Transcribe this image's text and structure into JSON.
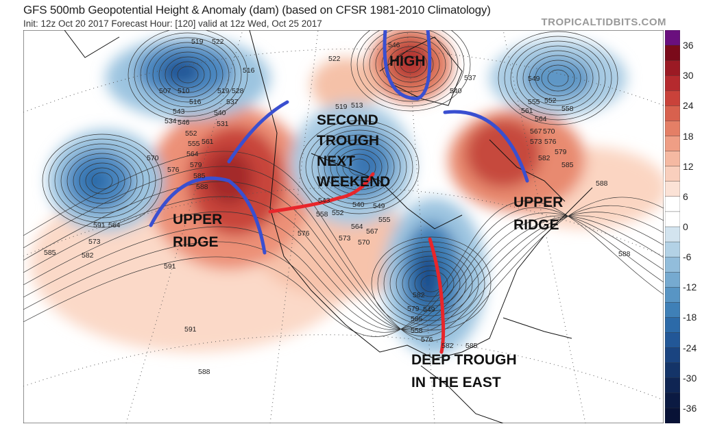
{
  "header": {
    "title": "GFS 500mb Geopotential Height & Anomaly (dam) (based on CFSR 1981-2010 Climatology)",
    "subtitle": "Init: 12z Oct 20 2017   Forecast Hour: [120]   valid at 12z Wed, Oct 25 2017",
    "brand": "TROPICALTIDBITS.COM"
  },
  "colorbar": {
    "ticks": [
      "36",
      "30",
      "24",
      "18",
      "12",
      "6",
      "0",
      "-6",
      "-12",
      "-18",
      "-24",
      "-30",
      "-36"
    ],
    "colors": [
      "#6a0f7e",
      "#7a0a1a",
      "#9b1a24",
      "#b52a2e",
      "#c9423a",
      "#d8614e",
      "#e47f66",
      "#ef9e85",
      "#f5b9a2",
      "#f9cfbd",
      "#fbe2d6",
      "#ffffff",
      "#ffffff",
      "#d3e4ef",
      "#b3d2e6",
      "#92bddb",
      "#76aad0",
      "#5895c4",
      "#3f80b7",
      "#2c6aa8",
      "#225797",
      "#1a4480",
      "#143468",
      "#0f2553",
      "#0b1a42",
      "#081236"
    ]
  },
  "annotations": {
    "high": "HIGH",
    "second_trough": [
      "SECOND",
      "TROUGH",
      "NEXT",
      "WEEKEND"
    ],
    "upper_ridge_west": [
      "UPPER",
      "RIDGE"
    ],
    "upper_ridge_east": [
      "UPPER",
      "RIDGE"
    ],
    "deep_trough": [
      "DEEP TROUGH",
      "IN THE EAST"
    ]
  },
  "contour_labels": [
    "519",
    "522",
    "516",
    "507",
    "510",
    "516",
    "519",
    "528",
    "537",
    "540",
    "531",
    "534",
    "543",
    "546",
    "552",
    "555",
    "561",
    "564",
    "570",
    "576",
    "579",
    "585",
    "588",
    "591",
    "564",
    "573",
    "582",
    "585",
    "591",
    "591",
    "588",
    "522",
    "546",
    "537",
    "540",
    "549",
    "552",
    "555",
    "558",
    "561",
    "564",
    "567",
    "570",
    "573",
    "576",
    "579",
    "582",
    "585",
    "588",
    "519",
    "513",
    "543",
    "540",
    "549",
    "552",
    "558",
    "564",
    "567",
    "555",
    "573",
    "570",
    "576",
    "582",
    "579",
    "585",
    "549",
    "558",
    "576",
    "582",
    "585",
    "588"
  ],
  "colors": {
    "annotation_blue": "#3a4fd0",
    "annotation_red": "#e8262b"
  }
}
